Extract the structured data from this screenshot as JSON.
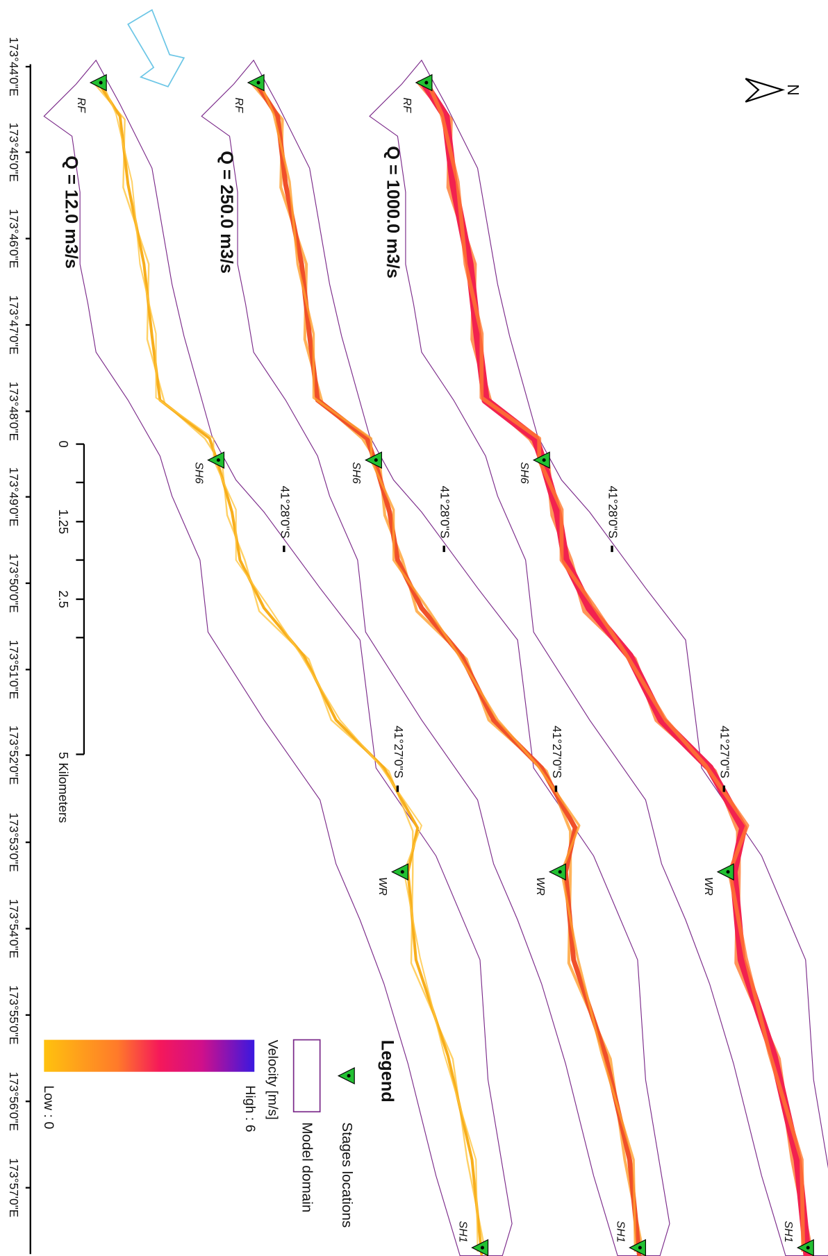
{
  "north": "N",
  "panels": [
    {
      "discharge": "Q = 1000.0 m3/s",
      "stations": [
        "RF",
        "SH6",
        "WR",
        "SH1"
      ],
      "latitudes": [
        "41°28'0\"S",
        "41°27'0\"S"
      ]
    },
    {
      "discharge": "Q = 250.0 m3/s",
      "stations": [
        "RF",
        "SH6",
        "WR",
        "SH1"
      ],
      "latitudes": [
        "41°28'0\"S",
        "41°27'0\"S"
      ]
    },
    {
      "discharge": "Q = 12.0 m3/s",
      "stations": [
        "RF",
        "SH6",
        "WR",
        "SH1"
      ],
      "latitudes": [
        "41°28'0\"S",
        "41°27'0\"S"
      ]
    }
  ],
  "longitudes": [
    "173°44'0\"E",
    "173°45'0\"E",
    "173°46'0\"E",
    "173°47'0\"E",
    "173°48'0\"E",
    "173°49'0\"E",
    "173°50'0\"E",
    "173°51'0\"E",
    "173°52'0\"E",
    "173°53'0\"E",
    "173°54'0\"E",
    "173°55'0\"E",
    "173°56'0\"E",
    "173°57'0\"E"
  ],
  "scale_bar": {
    "labels": [
      "0",
      "1.25",
      "2.5"
    ],
    "unit_label": "5 Kilometers"
  },
  "legend": {
    "title": "Legend",
    "items": [
      "Stages locations",
      "Model domain"
    ],
    "velocity": {
      "title": "Velocity [m/s]",
      "high": "High : 6",
      "low": "Low : 0"
    }
  }
}
